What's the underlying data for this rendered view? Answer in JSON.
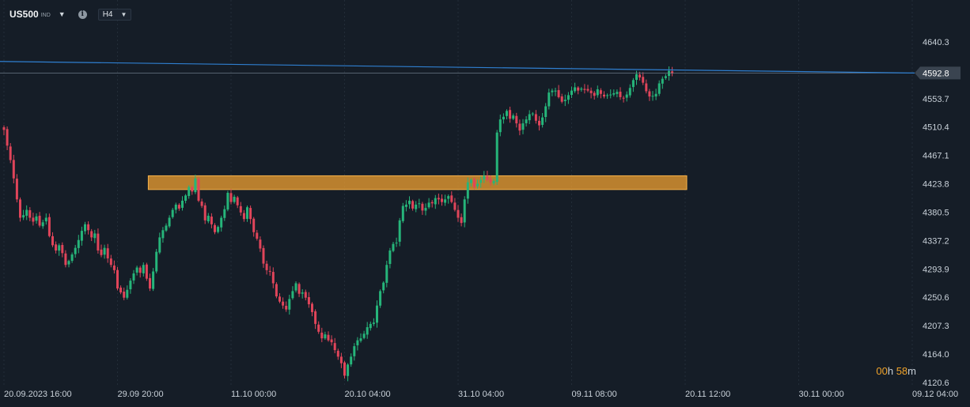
{
  "toolbar": {
    "symbol": "US500",
    "symbol_type": "IND",
    "timeframe": "H4",
    "info_icon": "info-icon",
    "dropdown_icon": "chevron-down-icon"
  },
  "timer": {
    "h_value": "00",
    "h_unit": "h",
    "m_value": "58",
    "m_unit": "m"
  },
  "colors": {
    "background": "#151d27",
    "up": "#26b57a",
    "down": "#e0455a",
    "grid": "#232d38",
    "trendline": "#2f7fd0",
    "zone_fill": "#f0a032",
    "price_label_bg": "#3a4450"
  },
  "chart_data": {
    "type": "candlestick",
    "title": "",
    "y_ticks": [
      "4640.3",
      "4553.7",
      "4510.4",
      "4467.1",
      "4423.8",
      "4380.5",
      "4337.2",
      "4293.9",
      "4250.6",
      "4207.3",
      "4164.0",
      "4120.6"
    ],
    "y_tick_values": [
      4640.3,
      4553.7,
      4510.4,
      4467.1,
      4423.8,
      4380.5,
      4337.2,
      4293.9,
      4250.6,
      4207.3,
      4164.0,
      4120.6
    ],
    "ylim": [
      4113.0,
      4655.0
    ],
    "x_ticks": [
      "20.09.2023 16:00",
      "29.09 20:00",
      "11.10 00:00",
      "20.10 04:00",
      "31.10 04:00",
      "09.11 08:00",
      "20.11 12:00",
      "30.11 00:00",
      "09.12 04:00"
    ],
    "x_tick_index": [
      0,
      35,
      70,
      105,
      140,
      175,
      210,
      245,
      280
    ],
    "current_price": {
      "label": "4592.8",
      "value": 4592.8
    },
    "horizontal_line": 4592.8,
    "trendline": {
      "start_index": 0,
      "start_value": 4610.5,
      "end_index": 280,
      "end_value": 4592.8
    },
    "resistance_zone": {
      "start_index": 44,
      "end_index": 210,
      "low": 4415.0,
      "high": 4436.0
    },
    "closes": [
      4506,
      4482,
      4460,
      4432,
      4400,
      4372,
      4376,
      4384,
      4372,
      4366,
      4374,
      4360,
      4365,
      4372,
      4344,
      4330,
      4322,
      4330,
      4318,
      4300,
      4306,
      4316,
      4326,
      4338,
      4352,
      4362,
      4353,
      4342,
      4348,
      4322,
      4315,
      4326,
      4310,
      4300,
      4292,
      4264,
      4258,
      4250,
      4262,
      4276,
      4287,
      4296,
      4288,
      4300,
      4279,
      4264,
      4290,
      4320,
      4342,
      4353,
      4360,
      4372,
      4384,
      4392,
      4386,
      4398,
      4406,
      4419,
      4412,
      4432,
      4398,
      4390,
      4368,
      4375,
      4362,
      4350,
      4358,
      4372,
      4385,
      4410,
      4396,
      4404,
      4391,
      4380,
      4370,
      4388,
      4370,
      4350,
      4340,
      4325,
      4302,
      4292,
      4290,
      4272,
      4252,
      4244,
      4238,
      4232,
      4248,
      4260,
      4272,
      4256,
      4258,
      4250,
      4240,
      4228,
      4210,
      4198,
      4188,
      4194,
      4185,
      4182,
      4170,
      4160,
      4150,
      4131,
      4148,
      4160,
      4176,
      4185,
      4188,
      4195,
      4205,
      4210,
      4212,
      4238,
      4260,
      4273,
      4300,
      4322,
      4332,
      4334,
      4368,
      4390,
      4392,
      4398,
      4386,
      4392,
      4394,
      4383,
      4387,
      4395,
      4394,
      4402,
      4400,
      4396,
      4400,
      4405,
      4396,
      4384,
      4372,
      4364,
      4400,
      4426,
      4430,
      4419,
      4424,
      4430,
      4436,
      4430,
      4426,
      4428,
      4502,
      4522,
      4526,
      4535,
      4523,
      4528,
      4516,
      4505,
      4516,
      4522,
      4530,
      4531,
      4520,
      4513,
      4525,
      4542,
      4563,
      4566,
      4566,
      4556,
      4549,
      4552,
      4559,
      4566,
      4571,
      4566,
      4569,
      4567,
      4566,
      4562,
      4558,
      4568,
      4561,
      4557,
      4559,
      4560,
      4562,
      4564,
      4556,
      4555,
      4560,
      4570,
      4582,
      4591,
      4586,
      4578,
      4565,
      4557,
      4558,
      4561,
      4577,
      4584,
      4588,
      4596,
      4592
    ]
  }
}
